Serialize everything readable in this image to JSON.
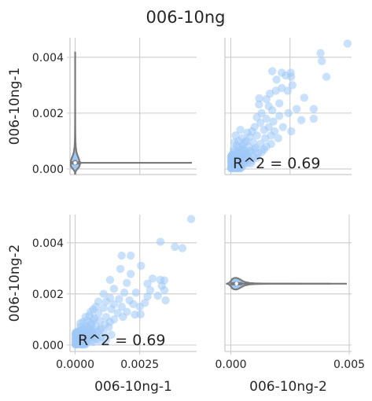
{
  "chart_data": {
    "type": "scatter",
    "title": "006-10ng",
    "colors": {
      "points": "#9ec9f7",
      "violin_fill": "#9ec9f7",
      "violin_edge": "#7a7a7a",
      "grid": "#cccccc",
      "text": "#262626"
    },
    "variables": [
      "006-10ng-1",
      "006-10ng-2"
    ],
    "grid": true,
    "panels": [
      {
        "id": "top-left",
        "kind": "violin",
        "var": "006-10ng-1",
        "ylabel": "006-10ng-1",
        "xlabel": "",
        "ylim": [
          -0.0002,
          0.0047
        ],
        "yticks": [
          0.0,
          0.002,
          0.004
        ],
        "ytick_labels": [
          "0.000",
          "0.002",
          "0.004"
        ],
        "xticks": [],
        "xtick_labels": [],
        "median": 0.00022,
        "q1": 0.00015,
        "q3": 0.00032
      },
      {
        "id": "top-right",
        "kind": "scatter",
        "x_var": "006-10ng-2",
        "y_var": "006-10ng-1",
        "xlim": [
          -0.00025,
          0.0051
        ],
        "ylim": [
          -0.0002,
          0.0047
        ],
        "xticks": [],
        "yticks": [],
        "annotation": "R^2 = 0.69"
      },
      {
        "id": "bottom-left",
        "kind": "scatter",
        "x_var": "006-10ng-1",
        "y_var": "006-10ng-2",
        "xlabel": "006-10ng-1",
        "ylabel": "006-10ng-2",
        "xlim": [
          -0.0002,
          0.0047
        ],
        "ylim": [
          -0.00025,
          0.0051
        ],
        "xticks": [
          0.0,
          0.0025
        ],
        "xtick_labels": [
          "0.0000",
          "0.0025"
        ],
        "yticks": [
          0.0,
          0.002,
          0.004
        ],
        "ytick_labels": [
          "0.000",
          "0.002",
          "0.004"
        ],
        "annotation": "R^2 = 0.69"
      },
      {
        "id": "bottom-right",
        "kind": "violin",
        "var": "006-10ng-2",
        "xlabel": "006-10ng-2",
        "ylabel": "",
        "ylim": [
          -0.00025,
          0.0051
        ],
        "xticks": [
          0.0,
          0.005
        ],
        "xtick_labels": [
          "0.000",
          "0.005"
        ],
        "yticks": [],
        "median": 0.00024,
        "q1": 0.00016,
        "q3": 0.00034
      }
    ],
    "violin_profile": [
      [
        -0.0002,
        0.0
      ],
      [
        -0.0001,
        0.06
      ],
      [
        0.0,
        0.45
      ],
      [
        5e-05,
        0.75
      ],
      [
        0.0001,
        0.9
      ],
      [
        0.00015,
        0.97
      ],
      [
        0.00022,
        1.0
      ],
      [
        0.0003,
        0.9
      ],
      [
        0.0004,
        0.7
      ],
      [
        0.0005,
        0.45
      ],
      [
        0.0006,
        0.28
      ],
      [
        0.0008,
        0.12
      ],
      [
        0.001,
        0.06
      ],
      [
        0.0013,
        0.03
      ],
      [
        0.0016,
        0.015
      ],
      [
        0.002,
        0.008
      ],
      [
        0.0025,
        0.004
      ],
      [
        0.003,
        0.002
      ],
      [
        0.0035,
        0.001
      ],
      [
        0.004,
        0.0004
      ],
      [
        0.0042,
        0.0
      ]
    ],
    "scatter_points": [
      [
        0.00493,
        0.00449
      ],
      [
        0.00379,
        0.00415
      ],
      [
        0.00384,
        0.00386
      ],
      [
        0.00404,
        0.0033
      ],
      [
        0.00255,
        0.0033
      ],
      [
        0.00232,
        0.00335
      ],
      [
        0.00253,
        0.00345
      ],
      [
        0.00215,
        0.00345
      ],
      [
        0.0026,
        0.003
      ],
      [
        0.00175,
        0.0035
      ],
      [
        0.00193,
        0.0032
      ],
      [
        0.00215,
        0.0029
      ],
      [
        0.0019,
        0.0028
      ],
      [
        0.00165,
        0.0027
      ],
      [
        0.0024,
        0.0028
      ],
      [
        0.0031,
        0.00255
      ],
      [
        0.00278,
        0.00215
      ],
      [
        0.00205,
        0.00235
      ],
      [
        0.0035,
        0.00215
      ],
      [
        0.00243,
        0.002
      ],
      [
        0.0035,
        0.0018
      ],
      [
        0.00298,
        0.00175
      ],
      [
        0.00205,
        0.0019
      ],
      [
        0.00255,
        0.00135
      ],
      [
        0.0012,
        0.00253
      ],
      [
        0.00119,
        0.00231
      ],
      [
        0.0015,
        0.0025
      ],
      [
        0.0016,
        0.00225
      ],
      [
        0.00175,
        0.0021
      ],
      [
        0.0013,
        0.002
      ],
      [
        0.0011,
        0.00185
      ],
      [
        0.0015,
        0.0018
      ],
      [
        0.0018,
        0.0017
      ],
      [
        0.00125,
        0.00165
      ],
      [
        0.0016,
        0.0015
      ],
      [
        0.001,
        0.0015
      ],
      [
        0.0014,
        0.0014
      ],
      [
        0.0009,
        0.00135
      ],
      [
        0.00185,
        0.00135
      ],
      [
        0.0022,
        0.0015
      ],
      [
        0.0011,
        0.0012
      ],
      [
        0.0008,
        0.00115
      ],
      [
        0.00145,
        0.0011
      ],
      [
        0.002,
        0.0011
      ],
      [
        0.00065,
        0.001
      ],
      [
        0.00095,
        0.00095
      ],
      [
        0.00125,
        0.0009
      ],
      [
        0.0017,
        0.0009
      ],
      [
        0.0005,
        0.00085
      ],
      [
        0.00075,
        0.0008
      ],
      [
        0.00105,
        0.00075
      ],
      [
        0.0014,
        0.0007
      ],
      [
        0.00045,
        0.0007
      ],
      [
        0.0006,
        0.00065
      ],
      [
        0.00085,
        0.0006
      ],
      [
        0.00115,
        0.00055
      ],
      [
        0.00035,
        0.0006
      ],
      [
        0.0005,
        0.00055
      ],
      [
        0.0007,
        0.0005
      ],
      [
        0.00095,
        0.00045
      ],
      [
        0.0003,
        0.0005
      ],
      [
        0.0004,
        0.00045
      ],
      [
        0.00055,
        0.0004
      ],
      [
        0.00075,
        0.0004
      ],
      [
        0.0002,
        0.0004
      ],
      [
        0.0003,
        0.00035
      ],
      [
        0.00045,
        0.00035
      ],
      [
        0.0006,
        0.0003
      ],
      [
        0.00015,
        0.0003
      ],
      [
        0.00025,
        0.00028
      ],
      [
        0.00035,
        0.00025
      ],
      [
        0.0005,
        0.00022
      ],
      [
        0.0001,
        0.00022
      ],
      [
        0.0002,
        0.0002
      ],
      [
        0.0003,
        0.00018
      ],
      [
        0.0004,
        0.00015
      ],
      [
        5e-05,
        0.00015
      ],
      [
        0.00015,
        0.00012
      ],
      [
        0.00025,
        0.0001
      ],
      [
        0.00035,
        0.0001
      ],
      [
        5e-05,
        8e-05
      ],
      [
        0.0001,
        5e-05
      ],
      [
        0.0002,
        5e-05
      ],
      [
        2e-05,
        2e-05
      ],
      [
        0.00012,
        0.0003
      ],
      [
        0.00022,
        0.00045
      ],
      [
        0.00028,
        0.0006
      ],
      [
        0.00038,
        0.0008
      ],
      [
        0.00042,
        0.0002
      ],
      [
        0.00058,
        0.00025
      ],
      [
        0.00065,
        0.00045
      ],
      [
        0.0008,
        0.00065
      ],
      [
        0.00018,
        0.00065
      ],
      [
        0.00025,
        0.00085
      ],
      [
        0.00032,
        0.001
      ],
      [
        0.00048,
        0.0011
      ],
      [
        0.0009,
        0.0003
      ],
      [
        0.0011,
        0.0004
      ],
      [
        0.0007,
        0.0002
      ],
      [
        0.0013,
        0.0006
      ],
      [
        8e-05,
        0.00045
      ],
      [
        0.00012,
        0.0007
      ],
      [
        0.00015,
        0.00095
      ],
      [
        0.0002,
        0.0012
      ],
      [
        0.00055,
        0.00015
      ],
      [
        0.00085,
        0.0002
      ],
      [
        0.001,
        0.0007
      ],
      [
        0.0006,
        0.00095
      ],
      [
        0.0015,
        0.0008
      ],
      [
        0.0017,
        0.0012
      ],
      [
        0.0007,
        0.0013
      ],
      [
        0.0004,
        0.0014
      ],
      [
        3e-05,
        0.00025
      ],
      [
        8e-05,
        0.00035
      ],
      [
        0.00028,
        8e-05
      ],
      [
        0.00045,
        5e-05
      ],
      [
        0.00018,
        0.00015
      ],
      [
        0.00033,
        0.00042
      ],
      [
        0.00052,
        0.00068
      ],
      [
        0.00062,
        0.00055
      ],
      [
        0.00023,
        0.00024
      ],
      [
        0.00037,
        0.00028
      ],
      [
        0.00013,
        0.00018
      ],
      [
        0.00047,
        0.00032
      ]
    ]
  }
}
